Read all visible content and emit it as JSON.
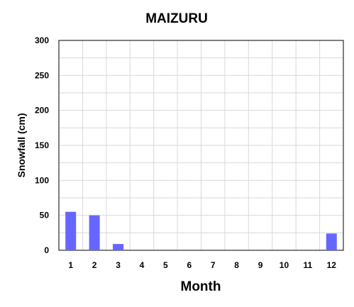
{
  "chart_data": {
    "type": "bar",
    "title": "MAIZURU",
    "xlabel": "Month",
    "ylabel": "Snowfall (cm)",
    "categories": [
      "1",
      "2",
      "3",
      "4",
      "5",
      "6",
      "7",
      "8",
      "9",
      "10",
      "11",
      "12"
    ],
    "values": [
      55,
      50,
      9,
      0,
      0,
      0,
      0,
      0,
      0,
      0,
      0,
      24
    ],
    "ylim": [
      0,
      300
    ],
    "yticks": [
      "0",
      "50",
      "100",
      "150",
      "200",
      "250",
      "300"
    ],
    "grid": true,
    "bar_color": "#6666ff"
  }
}
